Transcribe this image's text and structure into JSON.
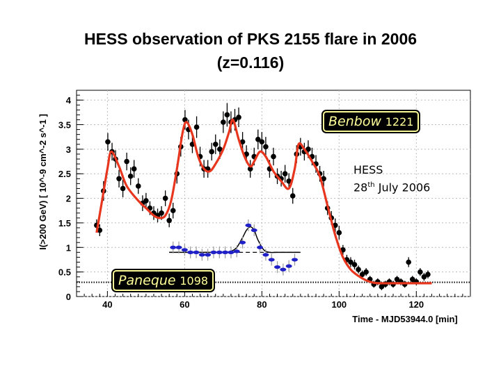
{
  "title_line1": "HESS observation of PKS 2155 flare in 2006",
  "title_line2": "(z=0.116)",
  "annotations": {
    "benbow_name": "Benbow",
    "benbow_number": "1221",
    "paneque_name": "Paneque",
    "paneque_number": "1098",
    "hess_line1": "HESS",
    "hess_day": "28",
    "hess_day_suffix": "th",
    "hess_rest": "July 2006"
  },
  "colors": {
    "hess_points": "#000000",
    "fit_curve": "#e8351e",
    "blue_points": "#2020c8",
    "gaussian_fit": "#000000",
    "tag_fill": "#000000",
    "tag_text": "#ffff99"
  },
  "chart_data": {
    "type": "scatter",
    "xlabel": "Time - MJD53944.0 [min]",
    "ylabel": "I(>200 GeV) [ 10^-9 cm^-2 s^-1 ]",
    "xlim": [
      32,
      134
    ],
    "ylim": [
      0,
      4.2
    ],
    "x_ticks": [
      40,
      60,
      80,
      100,
      120
    ],
    "y_ticks": [
      0,
      0.5,
      1,
      1.5,
      2,
      2.5,
      3,
      3.5,
      4
    ],
    "baseline_level": 0.29,
    "series": [
      {
        "name": "HESS light curve",
        "x": [
          37.2,
          38.0,
          39.0,
          40.1,
          41.2,
          42.1,
          43.0,
          44.0,
          45.0,
          46.0,
          46.9,
          48.0,
          49.1,
          50.0,
          51.0,
          52.0,
          53.0,
          54.0,
          55.0,
          56.0,
          57.0,
          58.0,
          59.0,
          60.1,
          61.0,
          62.0,
          63.1,
          64.0,
          65.0,
          66.0,
          67.0,
          68.0,
          69.1,
          70.0,
          71.0,
          72.0,
          73.0,
          74.0,
          75.0,
          76.0,
          77.0,
          78.0,
          79.0,
          80.0,
          81.0,
          82.0,
          83.0,
          84.0,
          85.0,
          86.0,
          87.0,
          88.0,
          89.0,
          90.0,
          91.0,
          92.0,
          93.0,
          94.0,
          95.0,
          96.0,
          97.0,
          98.0,
          99.0,
          100.0,
          101.0,
          102.0,
          103.0,
          104.0,
          105.0,
          106.0,
          107.0,
          108.0,
          109.0,
          110.0,
          111.0,
          112.0,
          113.0,
          114.0,
          115.0,
          116.0,
          117.0,
          118.0,
          119.0,
          120.0,
          121.0,
          122.0,
          123.0
        ],
        "y": [
          1.45,
          1.35,
          2.15,
          3.15,
          2.95,
          2.8,
          2.4,
          2.2,
          2.75,
          2.45,
          2.6,
          2.25,
          1.9,
          1.95,
          1.8,
          1.7,
          1.65,
          1.7,
          2.0,
          1.55,
          1.75,
          2.5,
          3.05,
          3.6,
          3.4,
          3.1,
          3.45,
          2.85,
          2.6,
          2.6,
          2.95,
          3.1,
          3.0,
          3.55,
          3.7,
          3.55,
          3.6,
          3.65,
          3.15,
          2.9,
          2.6,
          2.85,
          3.2,
          3.15,
          3.05,
          2.6,
          2.85,
          2.45,
          2.4,
          2.5,
          2.35,
          2.05,
          2.9,
          3.05,
          2.95,
          3.0,
          2.85,
          2.7,
          2.5,
          2.4,
          1.8,
          1.6,
          1.45,
          1.3,
          0.95,
          0.75,
          0.7,
          0.65,
          0.55,
          0.45,
          0.5,
          0.35,
          0.25,
          0.3,
          0.2,
          0.25,
          0.3,
          0.25,
          0.35,
          0.3,
          0.25,
          0.7,
          0.35,
          0.3,
          0.5,
          0.4,
          0.45
        ],
        "err": [
          0.12,
          0.12,
          0.2,
          0.18,
          0.18,
          0.18,
          0.18,
          0.18,
          0.18,
          0.18,
          0.18,
          0.16,
          0.16,
          0.16,
          0.14,
          0.14,
          0.14,
          0.14,
          0.16,
          0.14,
          0.16,
          0.2,
          0.2,
          0.2,
          0.2,
          0.18,
          0.22,
          0.2,
          0.18,
          0.18,
          0.18,
          0.2,
          0.2,
          0.22,
          0.24,
          0.22,
          0.22,
          0.2,
          0.2,
          0.18,
          0.18,
          0.18,
          0.2,
          0.2,
          0.2,
          0.18,
          0.18,
          0.16,
          0.16,
          0.18,
          0.16,
          0.16,
          0.18,
          0.18,
          0.18,
          0.18,
          0.18,
          0.18,
          0.16,
          0.16,
          0.14,
          0.14,
          0.14,
          0.14,
          0.1,
          0.1,
          0.1,
          0.1,
          0.08,
          0.08,
          0.08,
          0.07,
          0.07,
          0.07,
          0.07,
          0.07,
          0.07,
          0.07,
          0.07,
          0.07,
          0.07,
          0.1,
          0.07,
          0.07,
          0.08,
          0.08,
          0.08
        ]
      },
      {
        "name": "Fit curve",
        "x": [
          37.2,
          38.5,
          40.0,
          41.0,
          43.0,
          45.0,
          48.0,
          50.0,
          52.0,
          53.5,
          55.0,
          56.5,
          58.0,
          59.5,
          60.5,
          62.0,
          63.5,
          65.0,
          66.5,
          68.0,
          70.0,
          71.5,
          72.5,
          74.0,
          75.5,
          77.0,
          78.0,
          79.5,
          81.0,
          83.0,
          85.0,
          87.0,
          88.5,
          89.5,
          91.0,
          93.0,
          95.0,
          97.0,
          99.0,
          101.0,
          103.0,
          105.0,
          107.0,
          109.0,
          111.0,
          114.0,
          118.0,
          124.0
        ],
        "y": [
          1.3,
          1.9,
          2.6,
          2.95,
          2.65,
          2.25,
          1.95,
          1.8,
          1.65,
          1.6,
          1.65,
          1.95,
          2.6,
          3.35,
          3.55,
          3.3,
          2.85,
          2.6,
          2.55,
          2.7,
          3.0,
          3.35,
          3.6,
          3.2,
          2.85,
          2.65,
          2.75,
          2.95,
          2.85,
          2.55,
          2.35,
          2.2,
          2.6,
          3.1,
          3.0,
          2.75,
          2.45,
          1.85,
          1.25,
          0.8,
          0.55,
          0.42,
          0.33,
          0.28,
          0.27,
          0.27,
          0.27,
          0.27
        ]
      },
      {
        "name": "Paneque",
        "x": [
          57.0,
          58.5,
          60.0,
          61.5,
          63.0,
          64.5,
          66.0,
          67.5,
          69.0,
          70.5,
          72.0,
          73.5,
          75.0,
          76.5,
          78.0,
          79.5,
          81.0,
          82.5,
          84.0,
          85.5,
          87.0,
          88.5
        ],
        "y": [
          1.0,
          1.0,
          0.95,
          0.9,
          0.9,
          0.85,
          0.85,
          0.9,
          0.9,
          0.9,
          0.9,
          0.92,
          1.1,
          1.45,
          1.35,
          1.0,
          0.85,
          0.75,
          0.6,
          0.55,
          0.62,
          0.75
        ],
        "err": [
          0.12,
          0.12,
          0.12,
          0.12,
          0.12,
          0.12,
          0.12,
          0.12,
          0.12,
          0.12,
          0.12,
          0.12,
          0.12,
          0.12,
          0.12,
          0.12,
          0.12,
          0.12,
          0.12,
          0.12,
          0.12,
          0.12
        ]
      },
      {
        "name": "Gaussian fit",
        "x": [
          56.0,
          60.0,
          64.0,
          68.0,
          70.0,
          72.0,
          73.5,
          75.0,
          76.0,
          77.0,
          78.0,
          79.0,
          80.5,
          82.0,
          84.0,
          88.0,
          90.0
        ],
        "y": [
          0.9,
          0.9,
          0.9,
          0.9,
          0.9,
          0.92,
          1.0,
          1.2,
          1.35,
          1.42,
          1.35,
          1.15,
          0.95,
          0.9,
          0.9,
          0.9,
          0.9
        ]
      }
    ],
    "dashed_line": {
      "x": [
        56,
        90
      ],
      "y": 0.9
    }
  }
}
